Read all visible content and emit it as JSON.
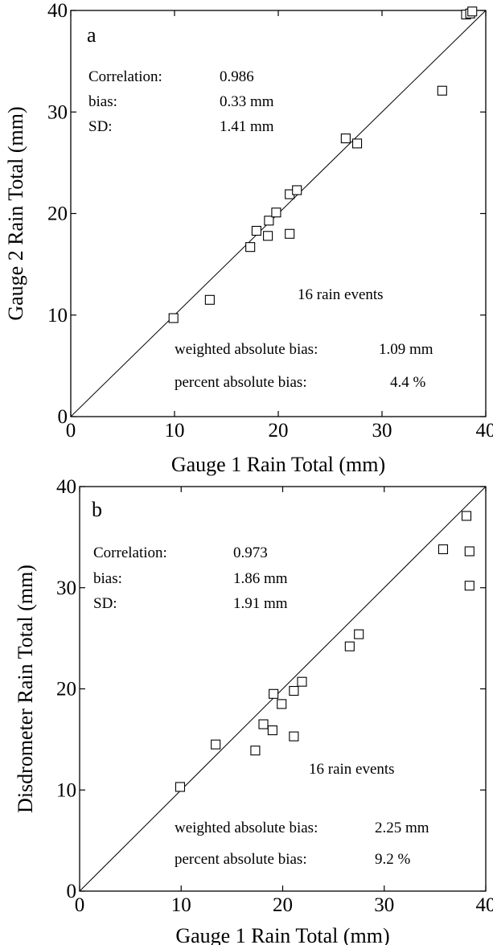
{
  "chart_data": [
    {
      "type": "scatter",
      "panel_label": "a",
      "xlabel": "Gauge 1 Rain Total (mm)",
      "ylabel": "Gauge 2 Rain Total (mm)",
      "xlim": [
        0,
        40
      ],
      "ylim": [
        0,
        40
      ],
      "xticks": [
        0,
        10,
        20,
        30,
        40
      ],
      "yticks": [
        0,
        10,
        20,
        30,
        40
      ],
      "grid": false,
      "reference_line": "1:1",
      "stats": [
        {
          "label": "Correlation:",
          "value": "0.986"
        },
        {
          "label": "bias:",
          "value": "0.33 mm"
        },
        {
          "label": "SD:",
          "value": "1.41 mm"
        }
      ],
      "events_note": "16 rain events",
      "weighted_bias": {
        "label": "weighted absolute  bias:",
        "value": "1.09 mm"
      },
      "percent_bias": {
        "label": "percent absolute bias:",
        "value": "4.4 %"
      },
      "points": [
        {
          "x": 9.9,
          "y": 9.7
        },
        {
          "x": 13.4,
          "y": 11.5
        },
        {
          "x": 17.3,
          "y": 16.7
        },
        {
          "x": 17.9,
          "y": 18.3
        },
        {
          "x": 19.0,
          "y": 17.8
        },
        {
          "x": 19.1,
          "y": 19.3
        },
        {
          "x": 19.8,
          "y": 20.1
        },
        {
          "x": 21.1,
          "y": 21.9
        },
        {
          "x": 21.1,
          "y": 18.0
        },
        {
          "x": 21.8,
          "y": 22.3
        },
        {
          "x": 26.5,
          "y": 27.4
        },
        {
          "x": 27.6,
          "y": 26.9
        },
        {
          "x": 35.8,
          "y": 32.1
        },
        {
          "x": 38.1,
          "y": 39.6
        },
        {
          "x": 38.5,
          "y": 39.7
        },
        {
          "x": 38.7,
          "y": 39.9
        }
      ]
    },
    {
      "type": "scatter",
      "panel_label": "b",
      "xlabel": "Gauge 1 Rain Total (mm)",
      "ylabel": "Disdrometer Rain Total (mm)",
      "xlim": [
        0,
        40
      ],
      "ylim": [
        0,
        40
      ],
      "xticks": [
        0,
        10,
        20,
        30,
        40
      ],
      "yticks": [
        0,
        10,
        20,
        30,
        40
      ],
      "grid": false,
      "reference_line": "1:1",
      "stats": [
        {
          "label": "Correlation:",
          "value": "0.973"
        },
        {
          "label": "bias:",
          "value": "1.86 mm"
        },
        {
          "label": "SD:",
          "value": "1.91 mm"
        }
      ],
      "events_note": "16 rain events",
      "weighted_bias": {
        "label": "weighted absolute  bias:",
        "value": "2.25 mm"
      },
      "percent_bias": {
        "label": "percent absolute bias:",
        "value": "9.2 %"
      },
      "points": [
        {
          "x": 9.9,
          "y": 10.3
        },
        {
          "x": 13.4,
          "y": 14.5
        },
        {
          "x": 17.3,
          "y": 13.9
        },
        {
          "x": 18.1,
          "y": 16.5
        },
        {
          "x": 19.1,
          "y": 19.5
        },
        {
          "x": 19.0,
          "y": 15.9
        },
        {
          "x": 19.9,
          "y": 18.5
        },
        {
          "x": 21.1,
          "y": 19.8
        },
        {
          "x": 21.1,
          "y": 15.3
        },
        {
          "x": 21.9,
          "y": 20.7
        },
        {
          "x": 26.6,
          "y": 24.2
        },
        {
          "x": 27.5,
          "y": 25.4
        },
        {
          "x": 35.8,
          "y": 33.8
        },
        {
          "x": 38.1,
          "y": 37.1
        },
        {
          "x": 38.4,
          "y": 33.6
        },
        {
          "x": 38.4,
          "y": 30.2
        }
      ]
    }
  ]
}
